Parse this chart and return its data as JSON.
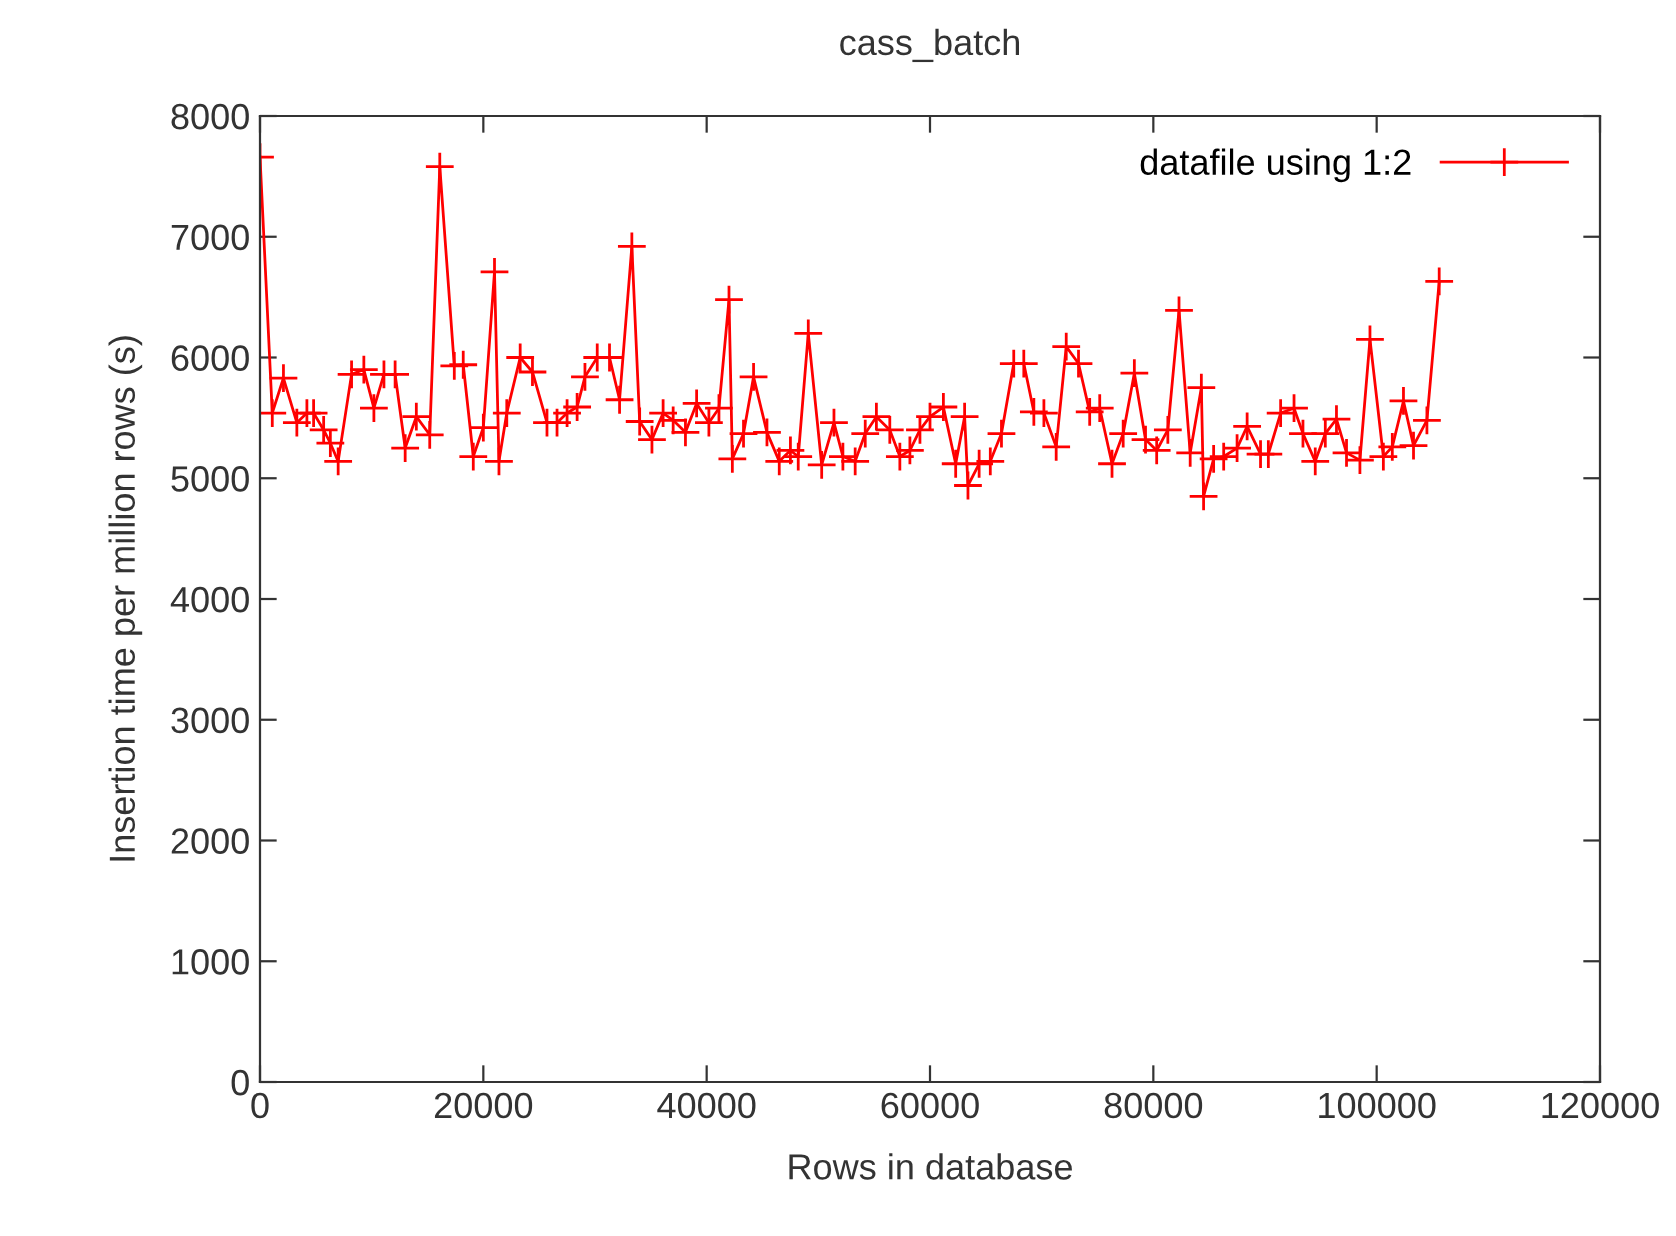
{
  "chart_data": {
    "type": "line",
    "title": "cass_batch",
    "xlabel": "Rows in database",
    "ylabel": "Insertion time per million rows (s)",
    "xlim": [
      0,
      120000
    ],
    "xticks": [
      0,
      20000,
      40000,
      60000,
      80000,
      100000,
      120000
    ],
    "ylim": [
      0,
      8000
    ],
    "yticks": [
      0,
      1000,
      2000,
      3000,
      4000,
      5000,
      6000,
      7000,
      8000
    ],
    "legend": "top right",
    "marker": "cross",
    "line_style": "solid",
    "grid": false,
    "series": [
      {
        "name": "datafile using 1:2",
        "color": "#ff0000",
        "x": [
          0,
          1100,
          2100,
          3300,
          4200,
          4800,
          5700,
          6300,
          7000,
          8200,
          9300,
          10200,
          11100,
          12100,
          13000,
          14000,
          15200,
          16100,
          17400,
          18200,
          19100,
          20000,
          21000,
          21400,
          22100,
          23300,
          24400,
          25700,
          26600,
          27500,
          28400,
          29100,
          30200,
          31300,
          32200,
          33300,
          34000,
          35100,
          36100,
          37000,
          38100,
          39100,
          40200,
          41100,
          42000,
          42300,
          43300,
          44200,
          45400,
          46500,
          47500,
          48200,
          49100,
          50300,
          51400,
          52200,
          53300,
          54200,
          55200,
          56400,
          57300,
          58200,
          59100,
          60000,
          61200,
          62300,
          63100,
          63400,
          64400,
          65400,
          66400,
          67500,
          68400,
          69300,
          70200,
          71300,
          72200,
          73300,
          74300,
          75200,
          76300,
          77300,
          78300,
          79300,
          80300,
          81300,
          82300,
          83300,
          84300,
          84500,
          85400,
          86300,
          87500,
          88400,
          89600,
          90300,
          91400,
          92600,
          93400,
          94500,
          95400,
          96400,
          97300,
          98500,
          99400,
          100600,
          101400,
          102400,
          103300,
          104500,
          105600
        ],
        "values": [
          7660,
          5540,
          5830,
          5460,
          5540,
          5540,
          5400,
          5290,
          5140,
          5860,
          5900,
          5580,
          5860,
          5860,
          5250,
          5510,
          5360,
          7580,
          5930,
          5940,
          5180,
          5420,
          6710,
          5140,
          5540,
          6000,
          5880,
          5460,
          5460,
          5540,
          5590,
          5840,
          6000,
          6000,
          5650,
          6920,
          5470,
          5320,
          5540,
          5480,
          5380,
          5620,
          5460,
          5580,
          6480,
          5160,
          5370,
          5840,
          5380,
          5140,
          5230,
          5180,
          6200,
          5110,
          5460,
          5180,
          5140,
          5370,
          5510,
          5400,
          5180,
          5230,
          5400,
          5510,
          5590,
          5120,
          5510,
          4940,
          5120,
          5140,
          5370,
          5950,
          5950,
          5550,
          5540,
          5260,
          6090,
          5950,
          5550,
          5580,
          5120,
          5370,
          5870,
          5320,
          5230,
          5400,
          6390,
          5210,
          5750,
          4850,
          5160,
          5180,
          5250,
          5430,
          5200,
          5200,
          5540,
          5580,
          5370,
          5140,
          5370,
          5490,
          5210,
          5150,
          6150,
          5180,
          5260,
          5640,
          5270,
          5480,
          6630
        ]
      }
    ]
  }
}
